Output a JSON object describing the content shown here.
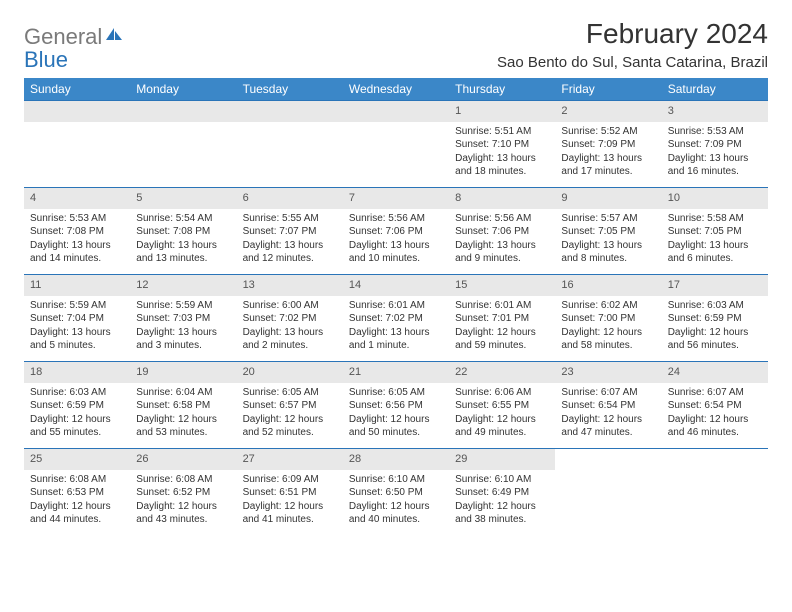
{
  "logo": {
    "general": "General",
    "blue": "Blue"
  },
  "title": "February 2024",
  "location": "Sao Bento do Sul, Santa Catarina, Brazil",
  "colors": {
    "header_bg": "#3b87c8",
    "header_text": "#ffffff",
    "divider": "#2a74b8",
    "daynum_bg": "#e8e8e8",
    "text": "#333333",
    "logo_gray": "#7a7a7a",
    "logo_blue": "#2a74b8"
  },
  "weekdays": [
    "Sunday",
    "Monday",
    "Tuesday",
    "Wednesday",
    "Thursday",
    "Friday",
    "Saturday"
  ],
  "weeks": [
    [
      null,
      null,
      null,
      null,
      {
        "n": "1",
        "sr": "Sunrise: 5:51 AM",
        "ss": "Sunset: 7:10 PM",
        "d1": "Daylight: 13 hours",
        "d2": "and 18 minutes."
      },
      {
        "n": "2",
        "sr": "Sunrise: 5:52 AM",
        "ss": "Sunset: 7:09 PM",
        "d1": "Daylight: 13 hours",
        "d2": "and 17 minutes."
      },
      {
        "n": "3",
        "sr": "Sunrise: 5:53 AM",
        "ss": "Sunset: 7:09 PM",
        "d1": "Daylight: 13 hours",
        "d2": "and 16 minutes."
      }
    ],
    [
      {
        "n": "4",
        "sr": "Sunrise: 5:53 AM",
        "ss": "Sunset: 7:08 PM",
        "d1": "Daylight: 13 hours",
        "d2": "and 14 minutes."
      },
      {
        "n": "5",
        "sr": "Sunrise: 5:54 AM",
        "ss": "Sunset: 7:08 PM",
        "d1": "Daylight: 13 hours",
        "d2": "and 13 minutes."
      },
      {
        "n": "6",
        "sr": "Sunrise: 5:55 AM",
        "ss": "Sunset: 7:07 PM",
        "d1": "Daylight: 13 hours",
        "d2": "and 12 minutes."
      },
      {
        "n": "7",
        "sr": "Sunrise: 5:56 AM",
        "ss": "Sunset: 7:06 PM",
        "d1": "Daylight: 13 hours",
        "d2": "and 10 minutes."
      },
      {
        "n": "8",
        "sr": "Sunrise: 5:56 AM",
        "ss": "Sunset: 7:06 PM",
        "d1": "Daylight: 13 hours",
        "d2": "and 9 minutes."
      },
      {
        "n": "9",
        "sr": "Sunrise: 5:57 AM",
        "ss": "Sunset: 7:05 PM",
        "d1": "Daylight: 13 hours",
        "d2": "and 8 minutes."
      },
      {
        "n": "10",
        "sr": "Sunrise: 5:58 AM",
        "ss": "Sunset: 7:05 PM",
        "d1": "Daylight: 13 hours",
        "d2": "and 6 minutes."
      }
    ],
    [
      {
        "n": "11",
        "sr": "Sunrise: 5:59 AM",
        "ss": "Sunset: 7:04 PM",
        "d1": "Daylight: 13 hours",
        "d2": "and 5 minutes."
      },
      {
        "n": "12",
        "sr": "Sunrise: 5:59 AM",
        "ss": "Sunset: 7:03 PM",
        "d1": "Daylight: 13 hours",
        "d2": "and 3 minutes."
      },
      {
        "n": "13",
        "sr": "Sunrise: 6:00 AM",
        "ss": "Sunset: 7:02 PM",
        "d1": "Daylight: 13 hours",
        "d2": "and 2 minutes."
      },
      {
        "n": "14",
        "sr": "Sunrise: 6:01 AM",
        "ss": "Sunset: 7:02 PM",
        "d1": "Daylight: 13 hours",
        "d2": "and 1 minute."
      },
      {
        "n": "15",
        "sr": "Sunrise: 6:01 AM",
        "ss": "Sunset: 7:01 PM",
        "d1": "Daylight: 12 hours",
        "d2": "and 59 minutes."
      },
      {
        "n": "16",
        "sr": "Sunrise: 6:02 AM",
        "ss": "Sunset: 7:00 PM",
        "d1": "Daylight: 12 hours",
        "d2": "and 58 minutes."
      },
      {
        "n": "17",
        "sr": "Sunrise: 6:03 AM",
        "ss": "Sunset: 6:59 PM",
        "d1": "Daylight: 12 hours",
        "d2": "and 56 minutes."
      }
    ],
    [
      {
        "n": "18",
        "sr": "Sunrise: 6:03 AM",
        "ss": "Sunset: 6:59 PM",
        "d1": "Daylight: 12 hours",
        "d2": "and 55 minutes."
      },
      {
        "n": "19",
        "sr": "Sunrise: 6:04 AM",
        "ss": "Sunset: 6:58 PM",
        "d1": "Daylight: 12 hours",
        "d2": "and 53 minutes."
      },
      {
        "n": "20",
        "sr": "Sunrise: 6:05 AM",
        "ss": "Sunset: 6:57 PM",
        "d1": "Daylight: 12 hours",
        "d2": "and 52 minutes."
      },
      {
        "n": "21",
        "sr": "Sunrise: 6:05 AM",
        "ss": "Sunset: 6:56 PM",
        "d1": "Daylight: 12 hours",
        "d2": "and 50 minutes."
      },
      {
        "n": "22",
        "sr": "Sunrise: 6:06 AM",
        "ss": "Sunset: 6:55 PM",
        "d1": "Daylight: 12 hours",
        "d2": "and 49 minutes."
      },
      {
        "n": "23",
        "sr": "Sunrise: 6:07 AM",
        "ss": "Sunset: 6:54 PM",
        "d1": "Daylight: 12 hours",
        "d2": "and 47 minutes."
      },
      {
        "n": "24",
        "sr": "Sunrise: 6:07 AM",
        "ss": "Sunset: 6:54 PM",
        "d1": "Daylight: 12 hours",
        "d2": "and 46 minutes."
      }
    ],
    [
      {
        "n": "25",
        "sr": "Sunrise: 6:08 AM",
        "ss": "Sunset: 6:53 PM",
        "d1": "Daylight: 12 hours",
        "d2": "and 44 minutes."
      },
      {
        "n": "26",
        "sr": "Sunrise: 6:08 AM",
        "ss": "Sunset: 6:52 PM",
        "d1": "Daylight: 12 hours",
        "d2": "and 43 minutes."
      },
      {
        "n": "27",
        "sr": "Sunrise: 6:09 AM",
        "ss": "Sunset: 6:51 PM",
        "d1": "Daylight: 12 hours",
        "d2": "and 41 minutes."
      },
      {
        "n": "28",
        "sr": "Sunrise: 6:10 AM",
        "ss": "Sunset: 6:50 PM",
        "d1": "Daylight: 12 hours",
        "d2": "and 40 minutes."
      },
      {
        "n": "29",
        "sr": "Sunrise: 6:10 AM",
        "ss": "Sunset: 6:49 PM",
        "d1": "Daylight: 12 hours",
        "d2": "and 38 minutes."
      },
      null,
      null
    ]
  ]
}
